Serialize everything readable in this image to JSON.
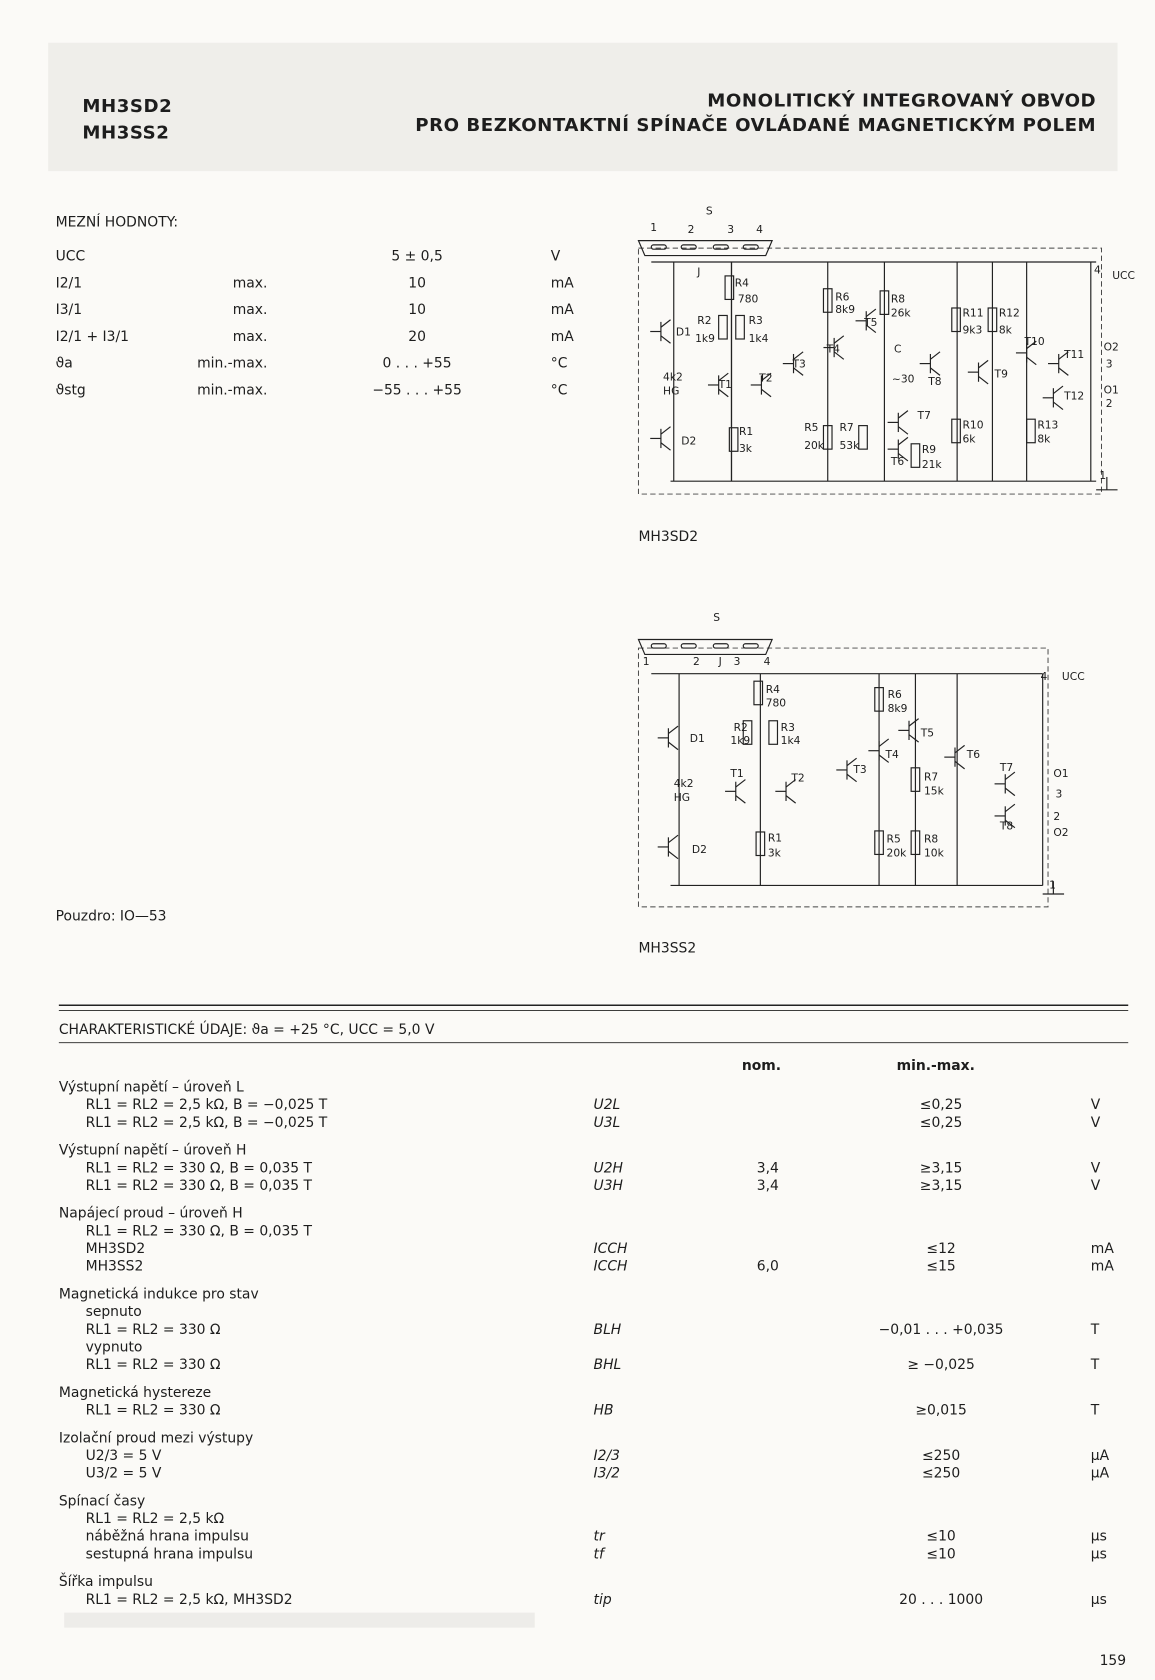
{
  "header": {
    "parts": [
      "MH3SD2",
      "MH3SS2"
    ],
    "title_lines": [
      "MONOLITICKÝ INTEGROVANÝ OBVOD",
      "PRO BEZKONTAKTNÍ SPÍNAČE OVLÁDANÉ MAGNETICKÝM POLEM"
    ]
  },
  "limits": {
    "title": "MEZNÍ HODNOTY:",
    "rows": [
      {
        "symbol": "UCC",
        "value": "5 ± 0,5",
        "unit": "V"
      },
      {
        "symbol": "I2/1",
        "limit": "max.",
        "value": "10",
        "unit": "mA"
      },
      {
        "symbol": "I3/1",
        "limit": "max.",
        "value": "10",
        "unit": "mA"
      },
      {
        "symbol": "I2/1 + I3/1",
        "limit": "max.",
        "value": "20",
        "unit": "mA"
      },
      {
        "symbol": "ϑa",
        "limit": "min.-max.",
        "value": "0 . . . +55",
        "unit": "°C"
      },
      {
        "symbol": "ϑstg",
        "limit": "min.-max.",
        "value": "−55 . . . +55",
        "unit": "°C"
      }
    ]
  },
  "package": "Pouzdro:  IO—53",
  "diagrams": [
    {
      "caption": "MH3SD2",
      "labels": [
        "S",
        "1",
        "2",
        "3",
        "4",
        "J",
        "R4",
        "780",
        "R2",
        "1k9",
        "R3",
        "1k4",
        "D1",
        "4k2",
        "HG",
        "T1",
        "T2",
        "T3",
        "D2",
        "R1",
        "3k",
        "R6",
        "8k9",
        "R8",
        "26k",
        "T5",
        "T4",
        "C",
        "~30",
        "T8",
        "R5",
        "20k",
        "R7",
        "53k",
        "T7",
        "T6",
        "R9",
        "21k",
        "R11",
        "9k3",
        "R12",
        "8k",
        "T9",
        "T10",
        "R10",
        "6k",
        "R13",
        "8k",
        "T11",
        "T12",
        "O2",
        "3",
        "O1",
        "2",
        "4",
        "UCC",
        "1"
      ]
    },
    {
      "caption": "MH3SS2",
      "labels": [
        "S",
        "1",
        "2",
        "J",
        "3",
        "4",
        "R4",
        "780",
        "R2",
        "1k9",
        "R3",
        "1k4",
        "D1",
        "4k2",
        "HG",
        "T1",
        "T2",
        "T3",
        "D2",
        "R1",
        "3k",
        "R6",
        "8k9",
        "T5",
        "T4",
        "T6",
        "R7",
        "15k",
        "R5",
        "20k",
        "R8",
        "10k",
        "T7",
        "T8",
        "4",
        "UCC",
        "O1",
        "3",
        "2",
        "O2",
        "1"
      ]
    }
  ],
  "characteristics": {
    "title": "CHARAKTERISTICKÉ ÚDAJE: ϑa = +25 °C, UCC = 5,0 V",
    "columns": [
      "nom.",
      "min.-max."
    ],
    "groups": [
      {
        "heading": "Výstupní napětí – úroveň L",
        "lines": [
          {
            "text": "RL1 = RL2 = 2,5 kΩ, B = −0,025 T",
            "symbol": "U2L",
            "range": "≤0,25",
            "unit": "V"
          },
          {
            "text": "RL1 = RL2 = 2,5 kΩ, B = −0,025 T",
            "symbol": "U3L",
            "range": "≤0,25",
            "unit": "V"
          }
        ]
      },
      {
        "heading": "Výstupní napětí – úroveň H",
        "lines": [
          {
            "text": "RL1 = RL2 = 330 Ω, B = 0,035 T",
            "symbol": "U2H",
            "nom": "3,4",
            "range": "≥3,15",
            "unit": "V"
          },
          {
            "text": "RL1 = RL2 = 330 Ω, B = 0,035 T",
            "symbol": "U3H",
            "nom": "3,4",
            "range": "≥3,15",
            "unit": "V"
          }
        ]
      },
      {
        "heading": "Napájecí proud – úroveň H",
        "lines": [
          {
            "text": "RL1 = RL2 = 330 Ω, B = 0,035 T"
          },
          {
            "text": "MH3SD2",
            "symbol": "ICCH",
            "range": "≤12",
            "unit": "mA"
          },
          {
            "text": "MH3SS2",
            "symbol": "ICCH",
            "nom": "6,0",
            "range": "≤15",
            "unit": "mA"
          }
        ]
      },
      {
        "heading": "Magnetická indukce pro stav",
        "lines": [
          {
            "text": "sepnuto"
          },
          {
            "text": "RL1 = RL2 = 330 Ω",
            "symbol": "BLH",
            "range": "−0,01 . . . +0,035",
            "unit": "T"
          },
          {
            "text": "vypnuto"
          },
          {
            "text": "RL1 = RL2 = 330 Ω",
            "symbol": "BHL",
            "range": "≥ −0,025",
            "unit": "T"
          }
        ]
      },
      {
        "heading": "Magnetická hystereze",
        "lines": [
          {
            "text": "RL1 = RL2 = 330 Ω",
            "symbol": "HB",
            "range": "≥0,015",
            "unit": "T"
          }
        ]
      },
      {
        "heading": "Izolační proud mezi výstupy",
        "lines": [
          {
            "text": "U2/3 = 5 V",
            "symbol": "I2/3",
            "range": "≤250",
            "unit": "μA"
          },
          {
            "text": "U3/2 = 5 V",
            "symbol": "I3/2",
            "range": "≤250",
            "unit": "μA"
          }
        ]
      },
      {
        "heading": "Spínací časy",
        "lines": [
          {
            "text": "RL1 = RL2 = 2,5 kΩ"
          },
          {
            "text": "náběžná hrana impulsu",
            "symbol": "tr",
            "range": "≤10",
            "unit": "μs"
          },
          {
            "text": "sestupná hrana impulsu",
            "symbol": "tf",
            "range": "≤10",
            "unit": "μs"
          }
        ]
      },
      {
        "heading": "Šířka impulsu",
        "lines": [
          {
            "text": "RL1 = RL2 = 2,5 kΩ, MH3SD2",
            "symbol": "tip",
            "range": "20 . . . 1000",
            "unit": "μs"
          }
        ]
      }
    ]
  },
  "page_number": "159"
}
